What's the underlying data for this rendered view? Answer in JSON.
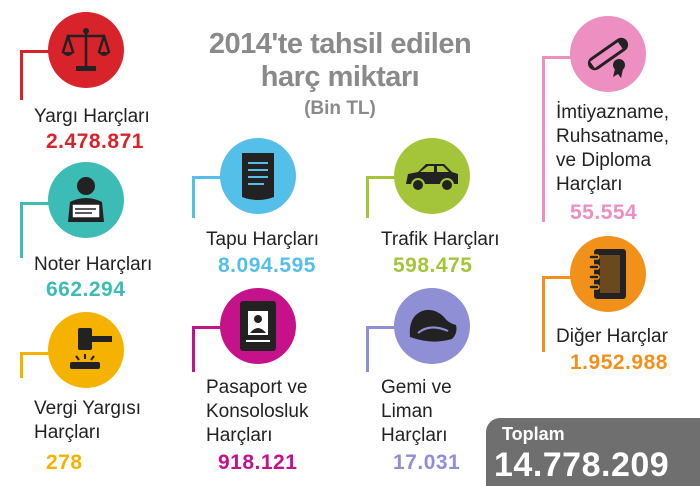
{
  "title_line1": "2014'te tahsil edilen",
  "title_line2": "harç miktarı",
  "subtitle": "(Bin TL)",
  "colors": {
    "red": "#d8232a",
    "teal": "#3cbcb4",
    "yellow": "#f5b300",
    "sky": "#54bfe8",
    "magenta": "#c5128a",
    "lime": "#a4c53a",
    "purple": "#8f8fd6",
    "pink": "#ee8fc1",
    "orange": "#f29119",
    "total_bg": "#6f6f6f"
  },
  "items": {
    "yargi": {
      "label": "Yargı Harçları",
      "value": "2.478.871",
      "icon": "scales-icon"
    },
    "noter": {
      "label": "Noter Harçları",
      "value": "662.294",
      "icon": "notary-icon"
    },
    "vergi": {
      "label1": "Vergi Yargısı",
      "label2": "Harçları",
      "value": "278",
      "icon": "gavel-icon"
    },
    "tapu": {
      "label": "Tapu Harçları",
      "value": "8.094.595",
      "icon": "deed-scroll-icon"
    },
    "pasaport": {
      "label1": "Pasaport ve",
      "label2": "Konsolosluk",
      "label3": "Harçları",
      "value": "918.121",
      "icon": "passport-icon"
    },
    "trafik": {
      "label": "Trafik Harçları",
      "value": "598.475",
      "icon": "car-icon"
    },
    "gemi": {
      "label1": "Gemi ve",
      "label2": "Liman",
      "label3": "Harçları",
      "value": "17.031",
      "icon": "ship-hat-icon"
    },
    "imtiyaz": {
      "label1": "İmtiyazname,",
      "label2": "Ruhsatname,",
      "label3": "ve Diploma",
      "label4": "Harçları",
      "value": "55.554",
      "icon": "diploma-icon"
    },
    "diger": {
      "label": "Diğer Harçlar",
      "value": "1.952.988",
      "icon": "notebook-icon"
    }
  },
  "total": {
    "label": "Toplam",
    "value": "14.778.209"
  }
}
